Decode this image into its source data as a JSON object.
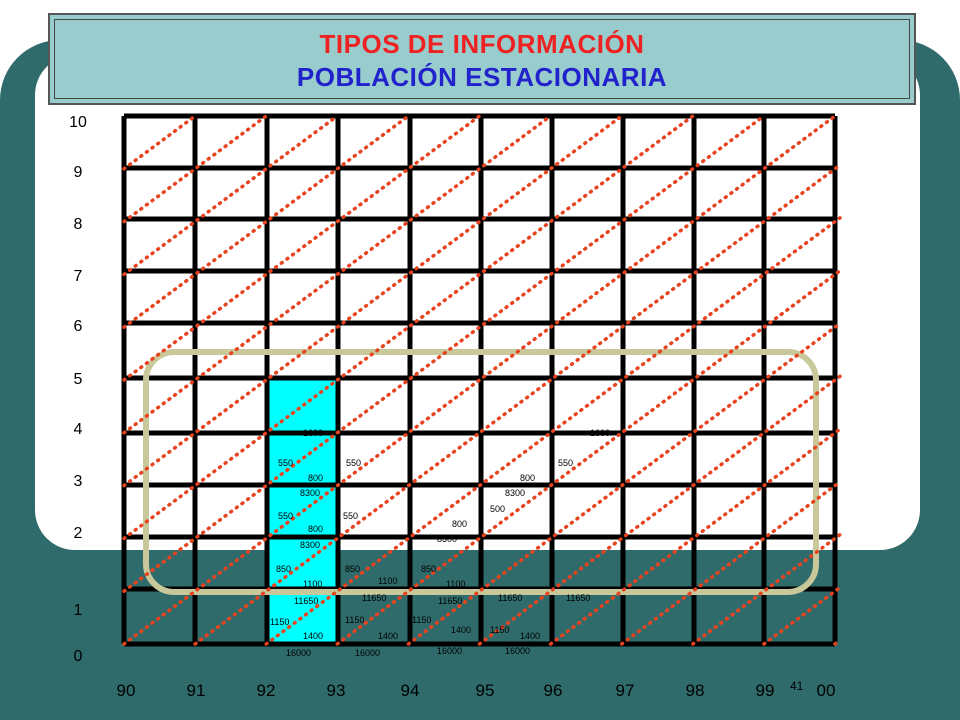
{
  "title": {
    "line1": "TIPOS DE INFORMACIÓN",
    "line2": "POBLACIÓN ESTACIONARIA"
  },
  "y_axis_labels": [
    "0",
    "1",
    "2",
    "3",
    "4",
    "5",
    "6",
    "7",
    "8",
    "9",
    "10"
  ],
  "x_axis_labels": [
    "90",
    "91",
    "92",
    "93",
    "94",
    "95",
    "96",
    "97",
    "98",
    "99",
    "00"
  ],
  "page_number": "41",
  "colors": {
    "highlight_column": "#00ffff",
    "dotted_lines": "#e8431f",
    "grid": "#000000",
    "rounded_box": "#c8c89a",
    "dark_band": "#2f6b6b"
  },
  "annotations": [
    {
      "text": "1600"
    },
    {
      "text": "1600"
    },
    {
      "text": "550"
    },
    {
      "text": "550"
    },
    {
      "text": "550"
    },
    {
      "text": "800"
    },
    {
      "text": "800"
    },
    {
      "text": "8300"
    },
    {
      "text": "8300"
    },
    {
      "text": "550"
    },
    {
      "text": "550"
    },
    {
      "text": "500"
    },
    {
      "text": "800"
    },
    {
      "text": "800"
    },
    {
      "text": "8300"
    },
    {
      "text": "8300"
    },
    {
      "text": "850"
    },
    {
      "text": "850"
    },
    {
      "text": "850"
    },
    {
      "text": "1100"
    },
    {
      "text": "1100"
    },
    {
      "text": "1100"
    },
    {
      "text": "11650"
    },
    {
      "text": "11650"
    },
    {
      "text": "11650"
    },
    {
      "text": "11650"
    },
    {
      "text": "11650"
    },
    {
      "text": "1150"
    },
    {
      "text": "1150"
    },
    {
      "text": "1150"
    },
    {
      "text": "1150"
    },
    {
      "text": "1400"
    },
    {
      "text": "1400"
    },
    {
      "text": "1400"
    },
    {
      "text": "1400"
    },
    {
      "text": "16000"
    },
    {
      "text": "16000"
    },
    {
      "text": "16000"
    },
    {
      "text": "16000"
    }
  ]
}
